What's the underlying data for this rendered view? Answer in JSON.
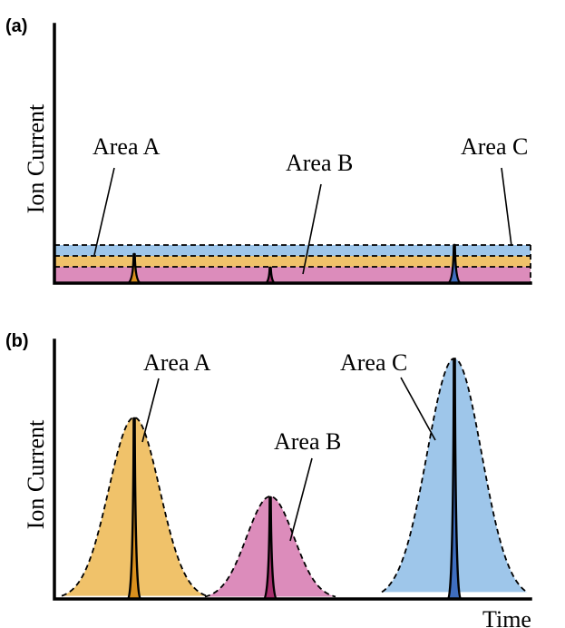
{
  "panels": [
    {
      "label": "(a)",
      "ylabel": "Ion Current",
      "areas": [
        {
          "name": "Area A",
          "color": "#f0c26a",
          "narrow_color": "#d9901e"
        },
        {
          "name": "Area B",
          "color": "#dc8cbb",
          "narrow_color": "#a8316e"
        },
        {
          "name": "Area C",
          "color": "#9ec6ea",
          "narrow_color": "#3f6ebf"
        }
      ]
    },
    {
      "label": "(b)",
      "ylabel": "Ion Current",
      "xlabel": "Time",
      "areas": [
        {
          "name": "Area A",
          "color": "#f0c26a",
          "narrow_color": "#d9901e"
        },
        {
          "name": "Area B",
          "color": "#dc8cbb",
          "narrow_color": "#a8316e"
        },
        {
          "name": "Area C",
          "color": "#9ec6ea",
          "narrow_color": "#3f6ebf"
        }
      ]
    }
  ]
}
